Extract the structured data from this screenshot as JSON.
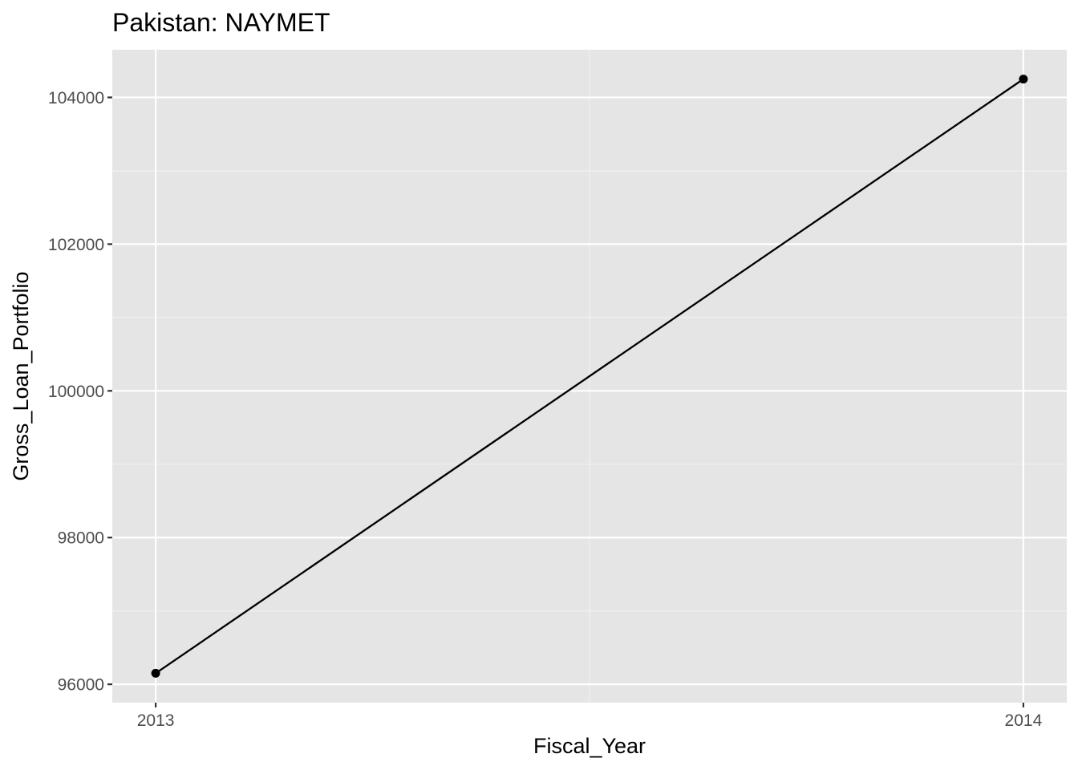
{
  "chart_data": {
    "type": "line",
    "title": "Pakistan:  NAYMET",
    "xlabel": "Fiscal_Year",
    "ylabel": "Gross_Loan_Portfolio",
    "x": [
      2013,
      2014
    ],
    "x_tick_labels": [
      "2013",
      "2014"
    ],
    "y_tick_labels": [
      "96000",
      "98000",
      "100000",
      "102000",
      "104000"
    ],
    "y_ticks": [
      96000,
      98000,
      100000,
      102000,
      104000
    ],
    "series": [
      {
        "values": [
          96150,
          104250
        ],
        "markers": true
      }
    ],
    "xlim": [
      2012.95,
      2014.05
    ],
    "ylim": [
      95750,
      104650
    ],
    "grid": true,
    "legend": "none",
    "colors": {
      "panel_background": "#e5e5e5",
      "grid_major": "#ffffff",
      "grid_minor": "#f2f2f2",
      "line": "#000000",
      "point": "#000000",
      "tick_text": "#4d4d4d",
      "tick_mark": "#333333"
    }
  }
}
